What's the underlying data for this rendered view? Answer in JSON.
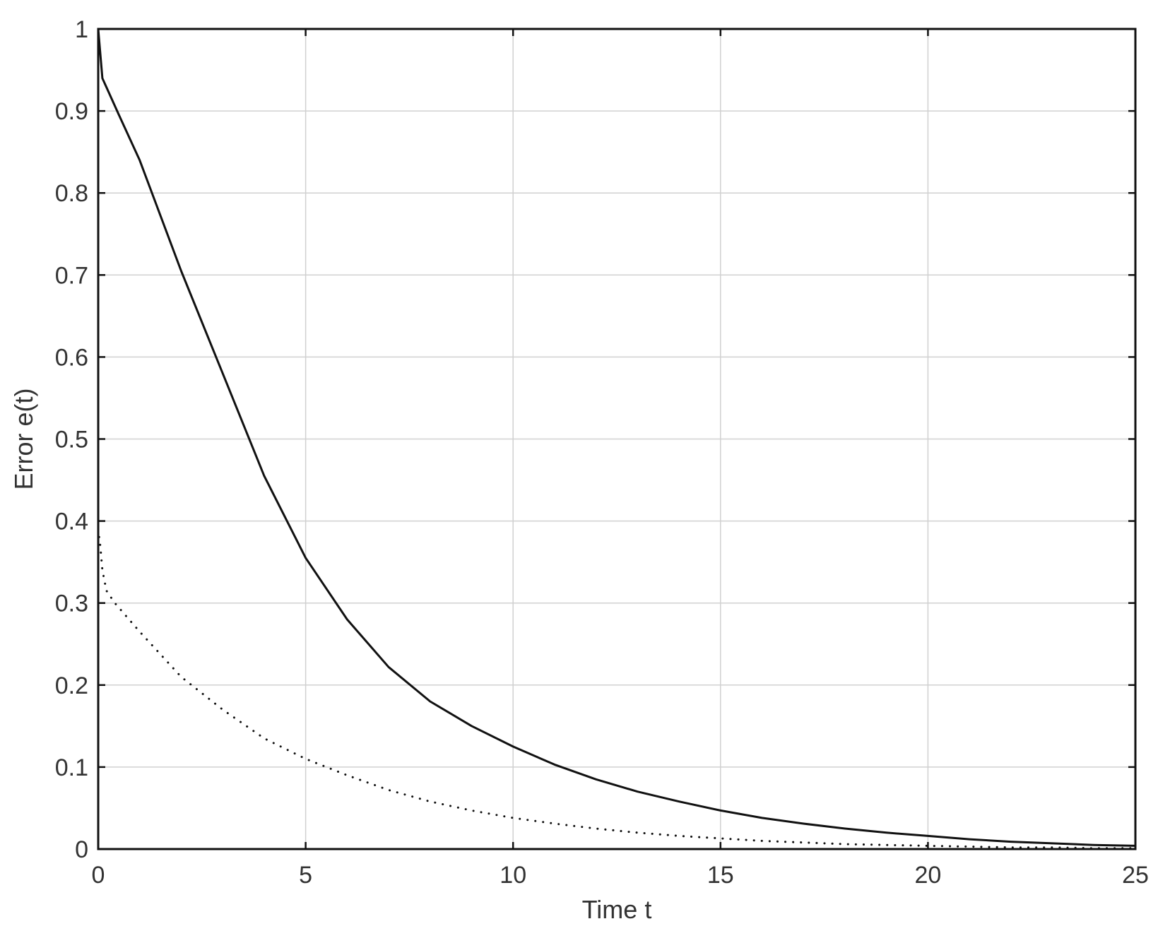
{
  "chart_data": {
    "type": "line",
    "title": "",
    "xlabel": "Time t",
    "ylabel": "Error e(t)",
    "xlim": [
      0,
      25
    ],
    "ylim": [
      0,
      1
    ],
    "xticks": [
      0,
      5,
      10,
      15,
      20,
      25
    ],
    "yticks": [
      0,
      0.1,
      0.2,
      0.3,
      0.4,
      0.5,
      0.6,
      0.7,
      0.8,
      0.9,
      1
    ],
    "xtick_labels": [
      "0",
      "5",
      "10",
      "15",
      "20",
      "25"
    ],
    "ytick_labels": [
      "0",
      "0.1",
      "0.2",
      "0.3",
      "0.4",
      "0.5",
      "0.6",
      "0.7",
      "0.8",
      "0.9",
      "1"
    ],
    "grid": true,
    "legend": "none",
    "series": [
      {
        "style": "solid",
        "color": "#111111",
        "x": [
          0,
          0.1,
          0.5,
          1,
          2,
          3,
          4,
          5,
          6,
          7,
          8,
          9,
          10,
          11,
          12,
          13,
          14,
          15,
          16,
          17,
          18,
          19,
          20,
          21,
          22,
          23,
          24,
          25
        ],
        "y": [
          1.0,
          0.94,
          0.895,
          0.84,
          0.705,
          0.58,
          0.455,
          0.355,
          0.28,
          0.222,
          0.18,
          0.15,
          0.125,
          0.103,
          0.085,
          0.07,
          0.058,
          0.047,
          0.038,
          0.031,
          0.025,
          0.02,
          0.016,
          0.012,
          0.009,
          0.007,
          0.005,
          0.004
        ]
      },
      {
        "style": "dotted",
        "color": "#111111",
        "x": [
          0,
          0.05,
          0.1,
          0.2,
          0.4,
          1,
          2,
          3,
          4,
          5,
          6,
          7,
          8,
          9,
          10,
          11,
          12,
          13,
          14,
          15,
          16,
          17,
          18,
          19,
          20,
          21,
          22,
          23,
          24,
          25
        ],
        "y": [
          0.39,
          0.37,
          0.34,
          0.315,
          0.3,
          0.265,
          0.21,
          0.17,
          0.135,
          0.11,
          0.09,
          0.072,
          0.058,
          0.047,
          0.038,
          0.031,
          0.025,
          0.02,
          0.016,
          0.013,
          0.01,
          0.008,
          0.006,
          0.005,
          0.004,
          0.003,
          0.002,
          0.002,
          0.001,
          0.001
        ]
      }
    ]
  }
}
